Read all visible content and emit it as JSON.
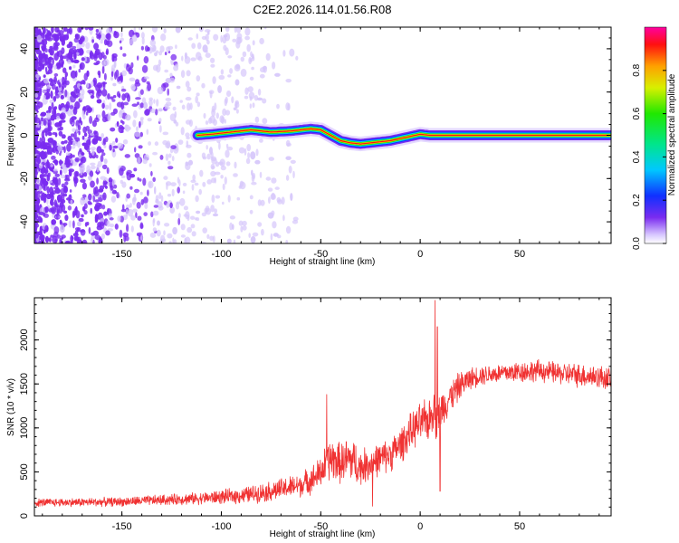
{
  "title": "C2E2.2026.114.01.56.R08",
  "colors": {
    "signal": "#f03232",
    "frame": "#000000",
    "noise": "#7a2cf0"
  },
  "chart_data": [
    {
      "type": "heatmap",
      "title": "C2E2.2026.114.01.56.R08",
      "xlabel": "Height of straight line (km)",
      "ylabel": "Frequency (Hz)",
      "xlim": [
        -194,
        96
      ],
      "ylim": [
        -50,
        50
      ],
      "xticks": [
        -150,
        -100,
        -50,
        0,
        50
      ],
      "xtick_labels": [
        "-150",
        "-100",
        "-50",
        "0",
        "50"
      ],
      "yticks": [
        -40,
        -20,
        0,
        20,
        40
      ],
      "ytick_labels": [
        "-40",
        "-20",
        "0",
        "20",
        "40"
      ],
      "ridge": {
        "x": [
          -112,
          -105,
          -95,
          -85,
          -75,
          -65,
          -55,
          -50,
          -45,
          -40,
          -35,
          -30,
          -25,
          -20,
          -15,
          -10,
          -5,
          0,
          5,
          10,
          15,
          96
        ],
        "y": [
          0,
          0.5,
          1.5,
          2.5,
          1.5,
          2.0,
          3.0,
          2.5,
          0,
          -2.5,
          -3.5,
          -4.0,
          -3.5,
          -3.0,
          -2.5,
          -1.5,
          -0.5,
          0.5,
          0,
          0,
          0,
          0
        ]
      },
      "colorbar": {
        "label": "Normalized spectral amplitude",
        "range": [
          0,
          1
        ],
        "ticks": [
          0.0,
          0.2,
          0.4,
          0.6,
          0.8
        ],
        "tick_labels": [
          "0.0",
          "0.2",
          "0.4",
          "0.6",
          "0.8"
        ]
      }
    },
    {
      "type": "line",
      "xlabel": "Height of straight line (km)",
      "ylabel": "SNR (10 * v/v)",
      "xlim": [
        -194,
        96
      ],
      "ylim": [
        0,
        2480
      ],
      "xticks": [
        -150,
        -100,
        -50,
        0,
        50
      ],
      "xtick_labels": [
        "-150",
        "-100",
        "-50",
        "0",
        "50"
      ],
      "yticks": [
        0,
        500,
        1000,
        1500,
        2000
      ],
      "ytick_labels": [
        "0",
        "500",
        "1000",
        "1500",
        "2000"
      ],
      "envelope": {
        "x": [
          -194,
          -150,
          -110,
          -90,
          -75,
          -60,
          -52,
          -50,
          -45,
          -40,
          -35,
          -30,
          -25,
          -20,
          -15,
          -10,
          -5,
          0,
          5,
          7,
          8,
          10,
          12,
          15,
          20,
          25,
          30,
          40,
          50,
          60,
          70,
          80,
          90,
          96
        ],
        "y": [
          150,
          160,
          200,
          230,
          280,
          350,
          450,
          500,
          650,
          600,
          650,
          550,
          600,
          650,
          700,
          800,
          950,
          1050,
          1100,
          1300,
          1100,
          1200,
          1250,
          1350,
          1480,
          1560,
          1600,
          1620,
          1640,
          1650,
          1620,
          1600,
          1580,
          1560
        ],
        "noise": [
          40,
          45,
          60,
          80,
          100,
          120,
          150,
          170,
          220,
          200,
          250,
          180,
          170,
          160,
          170,
          180,
          180,
          200,
          220,
          230,
          230,
          200,
          180,
          160,
          140,
          110,
          100,
          100,
          110,
          110,
          110,
          120,
          120,
          120
        ]
      },
      "spikes": [
        {
          "x": 7.5,
          "y": 2450
        },
        {
          "x": 8.6,
          "y": 2150
        },
        {
          "x": 10,
          "y": 280
        },
        {
          "x": -47,
          "y": 1380
        },
        {
          "x": -24,
          "y": 110
        }
      ]
    }
  ]
}
